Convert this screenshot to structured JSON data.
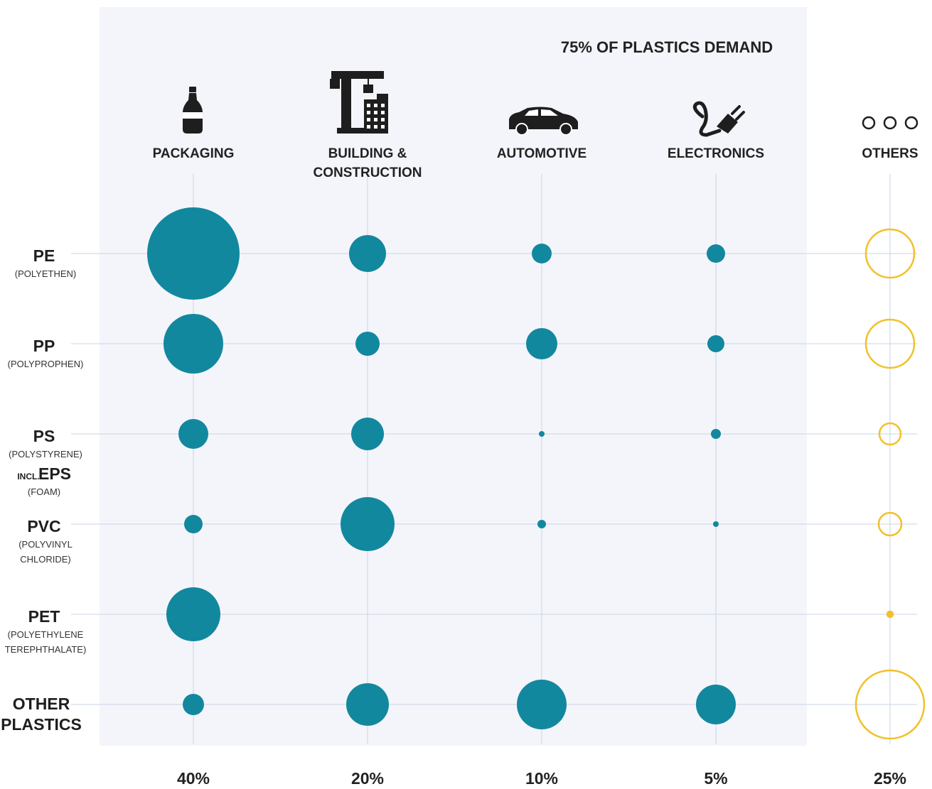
{
  "callout": "75% OF PLASTICS DEMAND",
  "colors": {
    "main": "#12889f",
    "others": "#f2c02a",
    "panel": "#f4f5fa",
    "grid": "#c9d3e6",
    "icon": "#1e1e1e"
  },
  "columns": [
    {
      "icon": "bottle-icon",
      "label_lines": [
        "PACKAGING"
      ],
      "share": "40%"
    },
    {
      "icon": "crane-building-icon",
      "label_lines": [
        "BUILDING &",
        "CONSTRUCTION"
      ],
      "share": "20%"
    },
    {
      "icon": "car-icon",
      "label_lines": [
        "AUTOMOTIVE"
      ],
      "share": "10%"
    },
    {
      "icon": "plug-icon",
      "label_lines": [
        "ELECTRONICS"
      ],
      "share": "5%"
    },
    {
      "icon": "dots-icon",
      "label_lines": [
        "OTHERS"
      ],
      "share": "25%"
    }
  ],
  "rows": [
    {
      "prefix": "",
      "code_lines": [
        "PE"
      ],
      "name_lines": [
        "(POLYETHEN)"
      ]
    },
    {
      "prefix": "",
      "code_lines": [
        "PP"
      ],
      "name_lines": [
        "(POLYPROPHEN)"
      ]
    },
    {
      "prefix": "",
      "code_lines": [
        "PS"
      ],
      "name_lines": [
        "(POLYSTYRENE)"
      ]
    },
    {
      "prefix": "",
      "code_lines": [
        "PVC"
      ],
      "name_lines": [
        "(POLYVINYL",
        "CHLORIDE)"
      ]
    },
    {
      "prefix": "",
      "code_lines": [
        "PET"
      ],
      "name_lines": [
        "(POLYETHYLENE",
        "TEREPHTHALATE)"
      ]
    },
    {
      "prefix": "",
      "code_lines": [
        "OTHER",
        "PLASTICS"
      ],
      "name_lines": []
    }
  ],
  "ps_extra": {
    "prefix": "INCL.",
    "code": "EPS",
    "name": "(FOAM)"
  },
  "chart_data": {
    "type": "bubble-matrix",
    "columns": [
      "PACKAGING",
      "BUILDING & CONSTRUCTION",
      "AUTOMOTIVE",
      "ELECTRONICS",
      "OTHERS"
    ],
    "column_shares": [
      "40%",
      "20%",
      "10%",
      "5%",
      "25%"
    ],
    "rows": [
      "PE",
      "PP",
      "PS incl. EPS",
      "PVC",
      "PET",
      "OTHER PLASTICS"
    ],
    "bubble_size_relative": [
      [
        65,
        26,
        14,
        13,
        34
      ],
      [
        42,
        17,
        22,
        12,
        34
      ],
      [
        21,
        23,
        4,
        7,
        15
      ],
      [
        13,
        38,
        6,
        4,
        16
      ],
      [
        38,
        0,
        0,
        0,
        4
      ],
      [
        15,
        30,
        35,
        28,
        48
      ]
    ],
    "others_column_style": "outline"
  }
}
